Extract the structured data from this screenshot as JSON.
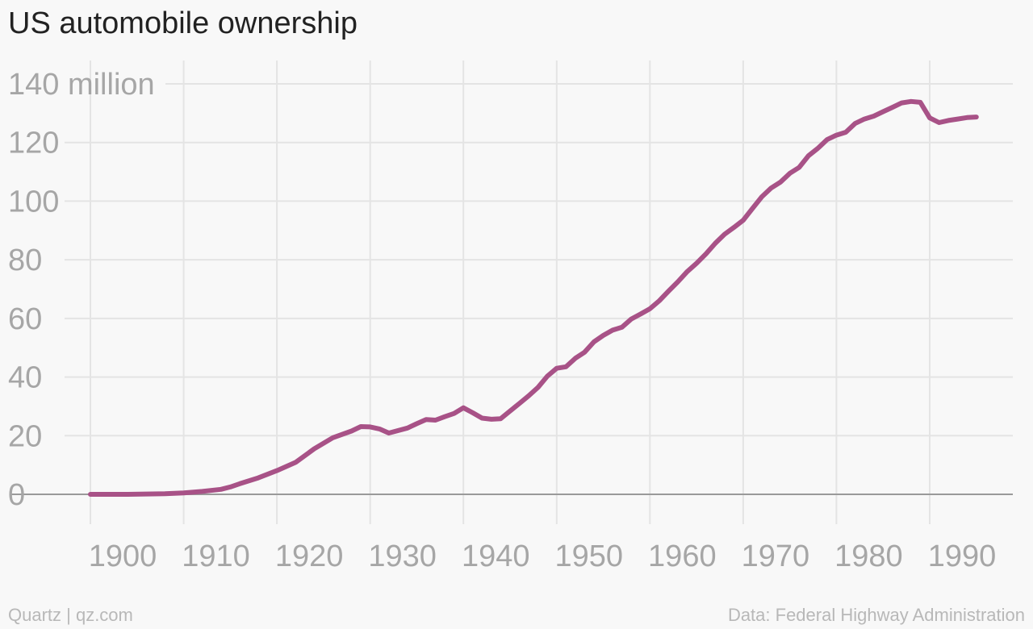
{
  "chart_data": {
    "type": "line",
    "title": "US automobile ownership",
    "xlabel": "",
    "ylabel": "",
    "xlim": [
      1900,
      1995
    ],
    "ylim": [
      0,
      140
    ],
    "x_ticks": [
      1900,
      1910,
      1920,
      1930,
      1940,
      1950,
      1960,
      1970,
      1980,
      1990
    ],
    "y_ticks": [
      {
        "value": 0,
        "label": "0"
      },
      {
        "value": 20,
        "label": "20"
      },
      {
        "value": 40,
        "label": "40"
      },
      {
        "value": 60,
        "label": "60"
      },
      {
        "value": 80,
        "label": "80"
      },
      {
        "value": 100,
        "label": "100"
      },
      {
        "value": 120,
        "label": "120"
      },
      {
        "value": 140,
        "label": "140 million"
      }
    ],
    "grid": true,
    "color": "#a85287",
    "series": [
      {
        "x": [
          1900,
          1902,
          1904,
          1906,
          1908,
          1910,
          1912,
          1914,
          1915,
          1916,
          1918,
          1920,
          1922,
          1924,
          1926,
          1928,
          1929,
          1930,
          1931,
          1932,
          1934,
          1935,
          1936,
          1937,
          1938,
          1939,
          1940,
          1941,
          1942,
          1943,
          1944,
          1945,
          1946,
          1947,
          1948,
          1949,
          1950,
          1951,
          1952,
          1953,
          1954,
          1955,
          1956,
          1957,
          1958,
          1959,
          1960,
          1961,
          1962,
          1963,
          1964,
          1965,
          1966,
          1967,
          1968,
          1969,
          1970,
          1971,
          1972,
          1973,
          1974,
          1975,
          1976,
          1977,
          1978,
          1979,
          1980,
          1981,
          1982,
          1983,
          1984,
          1985,
          1986,
          1987,
          1988,
          1989,
          1990,
          1991,
          1992,
          1993,
          1994,
          1995
        ],
        "values": [
          0,
          0,
          0,
          0.1,
          0.2,
          0.5,
          1.0,
          1.7,
          2.5,
          3.6,
          5.6,
          8.1,
          10.9,
          15.5,
          19.3,
          21.6,
          23.1,
          23.0,
          22.3,
          20.9,
          22.6,
          24.1,
          25.5,
          25.3,
          26.5,
          27.6,
          29.5,
          27.8,
          26.0,
          25.6,
          25.8,
          28.4,
          31.0,
          33.6,
          36.5,
          40.3,
          43.0,
          43.5,
          46.4,
          48.5,
          52.0,
          54.2,
          56.0,
          57.0,
          59.8,
          61.5,
          63.3,
          66.0,
          69.3,
          72.5,
          76.0,
          78.8,
          82.0,
          85.6,
          88.7,
          91.0,
          93.5,
          97.5,
          101.5,
          104.5,
          106.5,
          109.5,
          111.5,
          115.5,
          118.0,
          121.0,
          122.5,
          123.5,
          126.5,
          128.0,
          129.0,
          130.5,
          132.0,
          133.5,
          134.0,
          133.7,
          128.4,
          126.8,
          127.5,
          128.0,
          128.5,
          128.7
        ]
      }
    ]
  },
  "footer": {
    "source_left": "Quartz | qz.com",
    "source_right": "Data: Federal Highway Administration"
  }
}
